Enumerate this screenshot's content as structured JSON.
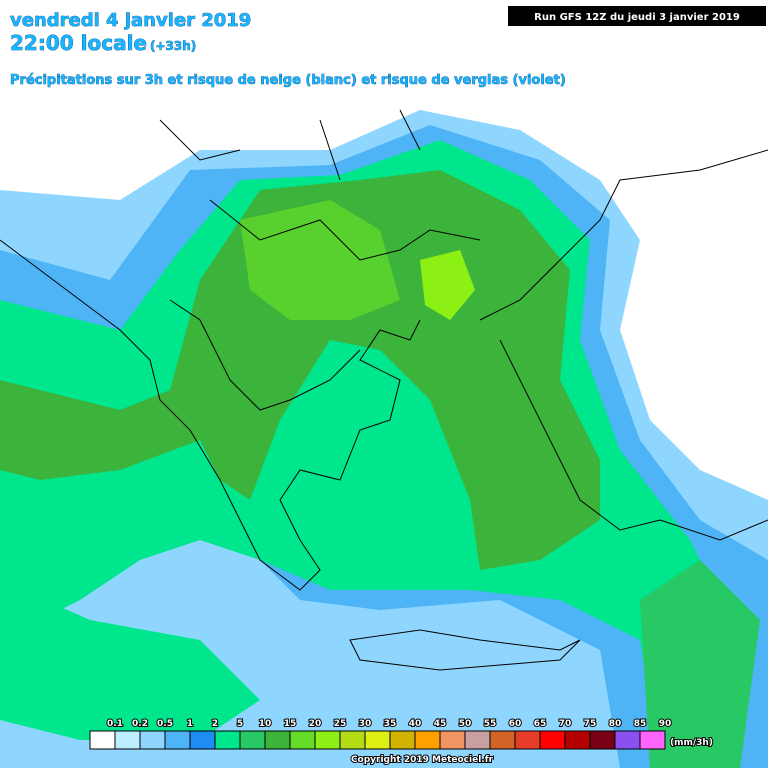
{
  "header": {
    "title": "vendredi 4 janvier 2019",
    "time": "22:00 locale",
    "offset": "(+33h)",
    "subtitle": "Précipitations sur 3h et risque de neige (blanc) et risque de verglas (violet)"
  },
  "run": "Run GFS 12Z du jeudi 3 janvier 2019",
  "legend": {
    "labels": [
      "0.1",
      "0.2",
      "0.5",
      "1",
      "2",
      "5",
      "10",
      "15",
      "20",
      "25",
      "30",
      "35",
      "40",
      "45",
      "50",
      "55",
      "60",
      "65",
      "70",
      "75",
      "80",
      "85",
      "90"
    ],
    "colors": [
      "#ffffff",
      "#bdeeff",
      "#8fd6ff",
      "#4fb4f5",
      "#1e8cf0",
      "#00e68c",
      "#28c864",
      "#3cb43c",
      "#64dc28",
      "#8cf014",
      "#b4dc14",
      "#dcf014",
      "#d2b400",
      "#ffa000",
      "#f09664",
      "#c8a0a0",
      "#d26428",
      "#e63c28",
      "#ff0000",
      "#b40000",
      "#780014",
      "#8c50f0",
      "#ff64ff"
    ],
    "unit": "(mm/3h)"
  },
  "copyright": "Copyright 2019 Meteociel.fr"
}
